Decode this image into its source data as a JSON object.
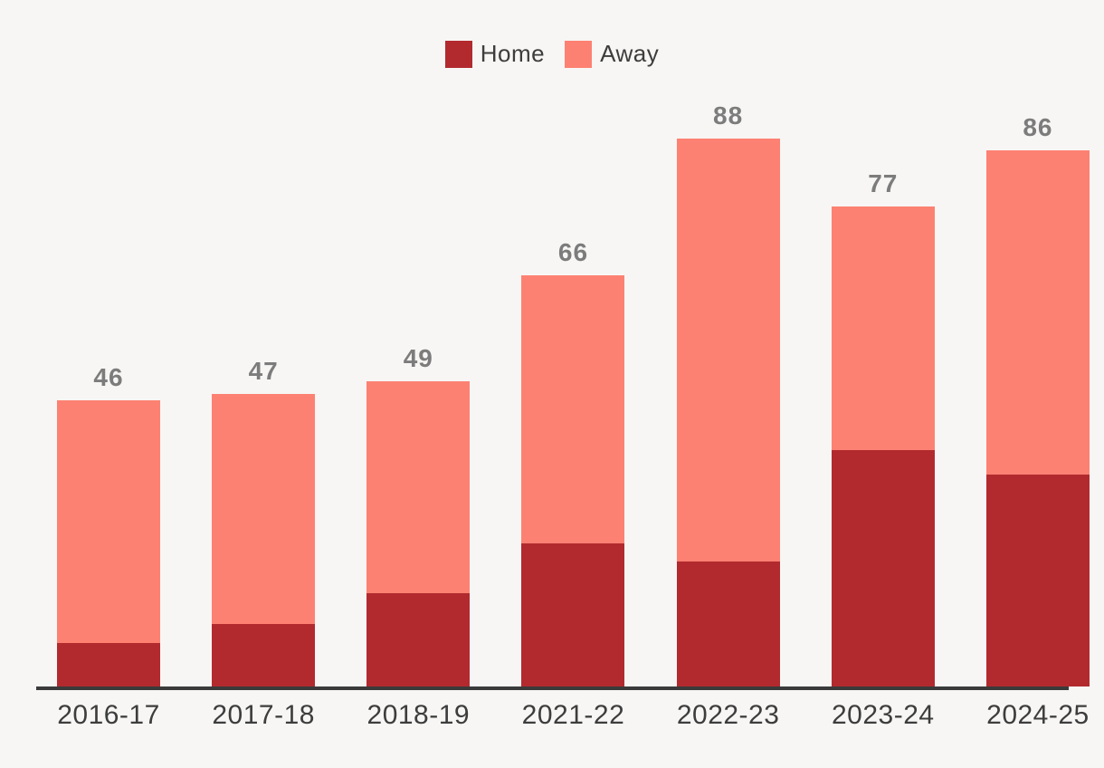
{
  "page": {
    "background_color": "#f7f6f4",
    "axis_color": "#3a3a3a",
    "total_label_color": "#7c7c7c",
    "category_label_color": "#3d3d3d"
  },
  "legend": {
    "position": "top-center",
    "items": [
      {
        "label": "Home",
        "color": "#b22a2e"
      },
      {
        "label": "Away",
        "color": "#fd8172"
      }
    ]
  },
  "chart_data": {
    "type": "bar",
    "stacked": true,
    "title": "",
    "xlabel": "",
    "ylabel": "",
    "grid": false,
    "y_axis_shown": false,
    "ylim": [
      0,
      88
    ],
    "legend_position": "top-center",
    "categories": [
      "2016-17",
      "2017-18",
      "2018-19",
      "2021-22",
      "2022-23",
      "2023-24",
      "2024-25"
    ],
    "series": [
      {
        "name": "Home",
        "color": "#b22a2e",
        "values": [
          7,
          10,
          15,
          23,
          20,
          38,
          34
        ]
      },
      {
        "name": "Away",
        "color": "#fd8172",
        "values": [
          39,
          37,
          34,
          43,
          68,
          39,
          52
        ]
      }
    ],
    "totals": [
      46,
      47,
      49,
      66,
      88,
      77,
      86
    ],
    "total_labels_shown": true
  }
}
